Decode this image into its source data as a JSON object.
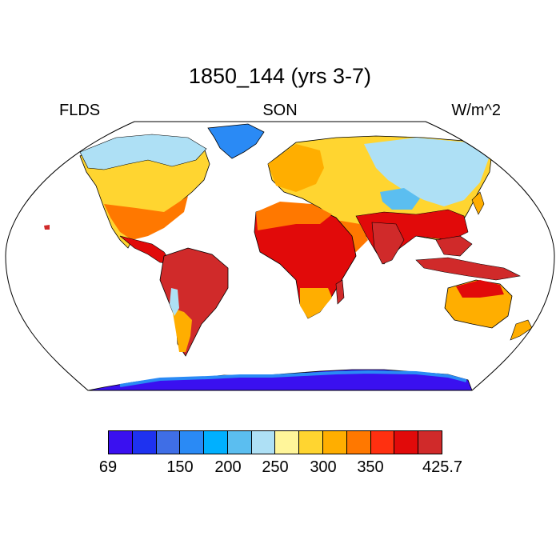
{
  "title": "1850_144 (yrs 3-7)",
  "left_label": "FLDS",
  "center_label": "SON",
  "right_label": "W/m^2",
  "colorbar": {
    "colors": [
      "#3a10f0",
      "#1e32f0",
      "#3f6ee6",
      "#2a8af5",
      "#00b0ff",
      "#5bbef0",
      "#aee0f5",
      "#fff59a",
      "#ffd530",
      "#ffae00",
      "#ff7800",
      "#ff3010",
      "#e10a0a",
      "#d02a2a"
    ],
    "tick_labels": [
      "69",
      "150",
      "200",
      "250",
      "300",
      "350",
      "425.7"
    ]
  },
  "map": {
    "projection": "robinson",
    "ocean_color": "#ffffff",
    "coastline_color": "#000000"
  }
}
